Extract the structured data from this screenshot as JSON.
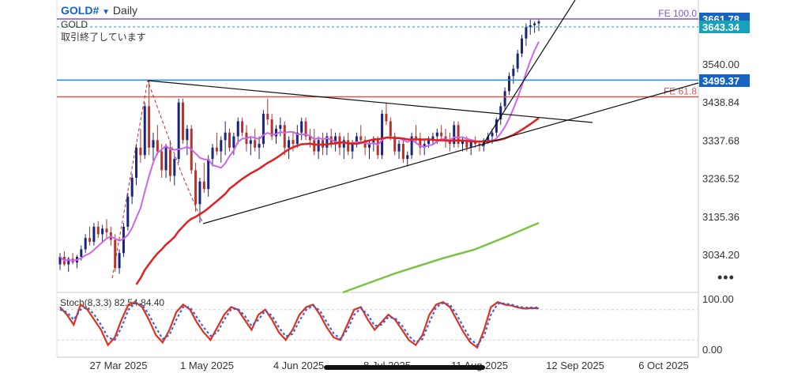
{
  "header": {
    "symbol": "GOLD#",
    "dropdown_icon": "triangle-down-icon",
    "timeframe": "Daily",
    "instrument": "GOLD",
    "status": "取引終了しています"
  },
  "menu_icon": "more-dots-icon",
  "chart_data": [
    {
      "type": "candlestick",
      "title": "",
      "ylim": [
        2950,
        3700
      ],
      "y_ticks": [
        "3540.00",
        "3438.84",
        "3337.68",
        "3236.52",
        "3135.36",
        "3034.20"
      ],
      "x_ticks": [
        "27 Mar 2025",
        "1 May 2025",
        "4 Jun 2025",
        "8 Jul 2025",
        "11 Aug 2025",
        "12 Sep 2025",
        "6 Oct 2025"
      ],
      "price_badges": [
        {
          "value": "3661.78",
          "color": "#1565c0"
        },
        {
          "value": "3643.34",
          "color": "#17a2b8"
        },
        {
          "value": "3499.37",
          "color": "#1565c0"
        }
      ],
      "levels": [
        {
          "label": "FE 100.0",
          "value": 3661.78,
          "color": "#7e57c2"
        },
        {
          "label": "FE 61.8",
          "value": 3455,
          "color": "#d9534f"
        },
        {
          "label": "",
          "value": 3499.37,
          "color": "#1e88e5"
        }
      ],
      "candles": [
        [
          3010,
          3040,
          2995,
          3030
        ],
        [
          3030,
          3045,
          3005,
          3010
        ],
        [
          3010,
          3030,
          2990,
          3025
        ],
        [
          3025,
          3040,
          3010,
          3015
        ],
        [
          3015,
          3035,
          3000,
          3030
        ],
        [
          3030,
          3060,
          3020,
          3050
        ],
        [
          3050,
          3090,
          3040,
          3080
        ],
        [
          3080,
          3110,
          3060,
          3070
        ],
        [
          3070,
          3120,
          3060,
          3110
        ],
        [
          3110,
          3125,
          3080,
          3090
        ],
        [
          3090,
          3115,
          3070,
          3105
        ],
        [
          3105,
          3130,
          3080,
          3095
        ],
        [
          3095,
          3110,
          3060,
          3075
        ],
        [
          3075,
          3090,
          2990,
          3000
        ],
        [
          3000,
          3050,
          2985,
          3040
        ],
        [
          3040,
          3120,
          3030,
          3110
        ],
        [
          3110,
          3200,
          3100,
          3190
        ],
        [
          3190,
          3250,
          3170,
          3240
        ],
        [
          3240,
          3330,
          3220,
          3320
        ],
        [
          3320,
          3370,
          3280,
          3300
        ],
        [
          3300,
          3440,
          3290,
          3430
        ],
        [
          3430,
          3500,
          3300,
          3320
        ],
        [
          3320,
          3360,
          3280,
          3340
        ],
        [
          3340,
          3380,
          3300,
          3310
        ],
        [
          3310,
          3330,
          3240,
          3260
        ],
        [
          3260,
          3330,
          3240,
          3320
        ],
        [
          3320,
          3340,
          3230,
          3245
        ],
        [
          3245,
          3300,
          3220,
          3290
        ],
        [
          3290,
          3450,
          3280,
          3440
        ],
        [
          3440,
          3450,
          3330,
          3340
        ],
        [
          3340,
          3380,
          3300,
          3370
        ],
        [
          3370,
          3380,
          3250,
          3260
        ],
        [
          3260,
          3280,
          3150,
          3170
        ],
        [
          3170,
          3240,
          3120,
          3230
        ],
        [
          3230,
          3280,
          3200,
          3210
        ],
        [
          3210,
          3300,
          3190,
          3290
        ],
        [
          3290,
          3330,
          3270,
          3320
        ],
        [
          3320,
          3360,
          3300,
          3310
        ],
        [
          3310,
          3350,
          3280,
          3340
        ],
        [
          3340,
          3390,
          3300,
          3360
        ],
        [
          3360,
          3370,
          3310,
          3320
        ],
        [
          3320,
          3360,
          3300,
          3350
        ],
        [
          3350,
          3400,
          3330,
          3390
        ],
        [
          3390,
          3400,
          3350,
          3360
        ],
        [
          3360,
          3380,
          3310,
          3330
        ],
        [
          3330,
          3350,
          3300,
          3340
        ],
        [
          3340,
          3370,
          3310,
          3320
        ],
        [
          3320,
          3350,
          3290,
          3330
        ],
        [
          3330,
          3420,
          3320,
          3410
        ],
        [
          3410,
          3450,
          3380,
          3395
        ],
        [
          3395,
          3410,
          3340,
          3350
        ],
        [
          3350,
          3380,
          3330,
          3370
        ],
        [
          3370,
          3400,
          3350,
          3380
        ],
        [
          3380,
          3390,
          3300,
          3320
        ],
        [
          3320,
          3350,
          3290,
          3340
        ],
        [
          3340,
          3360,
          3310,
          3330
        ],
        [
          3330,
          3380,
          3320,
          3360
        ],
        [
          3360,
          3400,
          3340,
          3390
        ],
        [
          3390,
          3400,
          3340,
          3350
        ],
        [
          3350,
          3370,
          3320,
          3340
        ],
        [
          3340,
          3370,
          3300,
          3310
        ],
        [
          3310,
          3350,
          3290,
          3340
        ],
        [
          3340,
          3360,
          3300,
          3320
        ],
        [
          3320,
          3360,
          3300,
          3350
        ],
        [
          3350,
          3370,
          3320,
          3330
        ],
        [
          3330,
          3360,
          3310,
          3350
        ],
        [
          3350,
          3360,
          3300,
          3320
        ],
        [
          3320,
          3350,
          3290,
          3340
        ],
        [
          3340,
          3360,
          3300,
          3310
        ],
        [
          3310,
          3340,
          3290,
          3330
        ],
        [
          3330,
          3360,
          3320,
          3350
        ],
        [
          3350,
          3380,
          3330,
          3340
        ],
        [
          3340,
          3350,
          3300,
          3320
        ],
        [
          3320,
          3340,
          3290,
          3330
        ],
        [
          3330,
          3350,
          3310,
          3340
        ],
        [
          3340,
          3350,
          3290,
          3300
        ],
        [
          3300,
          3420,
          3290,
          3410
        ],
        [
          3410,
          3440,
          3380,
          3390
        ],
        [
          3390,
          3400,
          3340,
          3350
        ],
        [
          3350,
          3360,
          3300,
          3310
        ],
        [
          3310,
          3340,
          3290,
          3330
        ],
        [
          3330,
          3340,
          3280,
          3290
        ],
        [
          3290,
          3310,
          3270,
          3300
        ],
        [
          3300,
          3360,
          3290,
          3350
        ],
        [
          3350,
          3380,
          3330,
          3345
        ],
        [
          3345,
          3360,
          3300,
          3320
        ],
        [
          3320,
          3340,
          3300,
          3330
        ],
        [
          3330,
          3350,
          3320,
          3340
        ],
        [
          3340,
          3360,
          3330,
          3350
        ],
        [
          3350,
          3370,
          3330,
          3360
        ],
        [
          3360,
          3380,
          3340,
          3350
        ],
        [
          3350,
          3370,
          3320,
          3340
        ],
        [
          3340,
          3360,
          3310,
          3330
        ],
        [
          3330,
          3390,
          3320,
          3380
        ],
        [
          3380,
          3390,
          3320,
          3330
        ],
        [
          3330,
          3350,
          3310,
          3340
        ],
        [
          3340,
          3350,
          3310,
          3320
        ],
        [
          3320,
          3340,
          3300,
          3335
        ],
        [
          3335,
          3350,
          3320,
          3330
        ],
        [
          3330,
          3340,
          3310,
          3325
        ],
        [
          3325,
          3345,
          3310,
          3340
        ],
        [
          3340,
          3360,
          3330,
          3350
        ],
        [
          3350,
          3370,
          3330,
          3360
        ],
        [
          3360,
          3400,
          3350,
          3395
        ],
        [
          3395,
          3440,
          3380,
          3430
        ],
        [
          3430,
          3480,
          3420,
          3470
        ],
        [
          3470,
          3520,
          3460,
          3510
        ],
        [
          3510,
          3540,
          3490,
          3530
        ],
        [
          3530,
          3580,
          3520,
          3570
        ],
        [
          3570,
          3620,
          3560,
          3610
        ],
        [
          3610,
          3650,
          3590,
          3640
        ],
        [
          3640,
          3660,
          3620,
          3645
        ],
        [
          3645,
          3655,
          3625,
          3650
        ],
        [
          3650,
          3662,
          3630,
          3655
        ]
      ],
      "ma_red_label": "",
      "ma_purple_label": "",
      "ma_green_label": ""
    },
    {
      "type": "line",
      "title": "Stoch(8,3,3) 82.54 84.40",
      "ylim": [
        0,
        100
      ],
      "y_ticks": [
        "100.00",
        "0.00"
      ],
      "series": [
        {
          "name": "",
          "color": "#e0301e",
          "style": "solid",
          "values": [
            85,
            70,
            50,
            90,
            80,
            60,
            40,
            10,
            25,
            60,
            90,
            95,
            85,
            60,
            30,
            15,
            40,
            75,
            90,
            80,
            55,
            35,
            20,
            45,
            70,
            85,
            80,
            60,
            40,
            70,
            80,
            60,
            35,
            20,
            40,
            70,
            85,
            90,
            70,
            45,
            25,
            20,
            50,
            80,
            85,
            60,
            40,
            55,
            70,
            60,
            40,
            20,
            10,
            30,
            70,
            90,
            95,
            85,
            60,
            35,
            15,
            5,
            40,
            85,
            95,
            90,
            88,
            84,
            82,
            83,
            82.54
          ]
        },
        {
          "name": "",
          "color": "#3b62d8",
          "style": "dotted",
          "values": [
            80,
            75,
            60,
            80,
            85,
            70,
            50,
            25,
            20,
            45,
            80,
            93,
            90,
            70,
            45,
            22,
            30,
            60,
            85,
            85,
            65,
            45,
            28,
            35,
            60,
            80,
            82,
            68,
            48,
            60,
            78,
            68,
            45,
            27,
            32,
            58,
            80,
            88,
            78,
            55,
            33,
            22,
            40,
            70,
            83,
            70,
            48,
            50,
            65,
            63,
            48,
            28,
            15,
            22,
            55,
            85,
            93,
            90,
            70,
            45,
            22,
            10,
            28,
            70,
            92,
            92,
            90,
            86,
            84,
            84,
            84.4
          ]
        }
      ]
    }
  ]
}
